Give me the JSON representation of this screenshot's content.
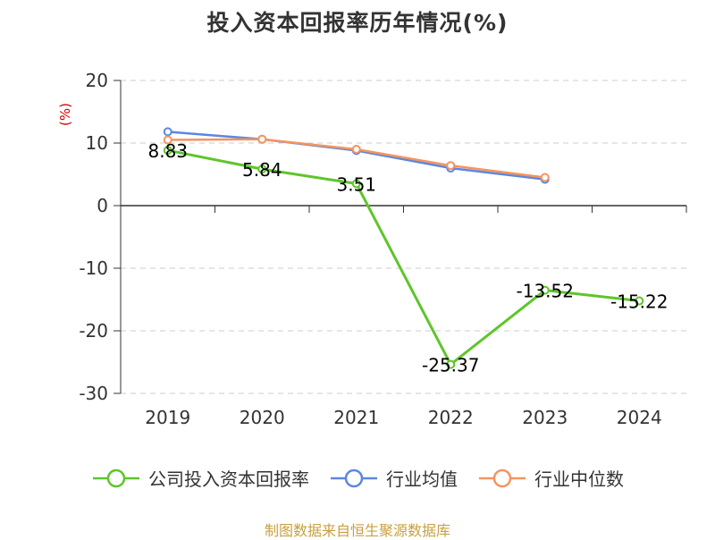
{
  "title": "投入资本回报率历年情况(%)",
  "unit_label": "(%)",
  "source_note": "制图数据来自恒生聚源数据库",
  "colors": {
    "company": "#5ec52b",
    "industry_avg": "#5b87e0",
    "industry_median": "#f5945f",
    "axis": "#333333",
    "grid": "#cccccc"
  },
  "legend": [
    {
      "label": "公司投入资本回报率",
      "color": "#5ec52b"
    },
    {
      "label": "行业均值",
      "color": "#5b87e0"
    },
    {
      "label": "行业中位数",
      "color": "#f5945f"
    }
  ],
  "chart_data": {
    "type": "line",
    "title": "投入资本回报率历年情况(%)",
    "ylabel": "(%)",
    "categories": [
      "2019",
      "2020",
      "2021",
      "2022",
      "2023",
      "2024"
    ],
    "ylim": [
      -30,
      20
    ],
    "yticks": [
      "20",
      "10",
      "0",
      "-10",
      "-20",
      "-30"
    ],
    "grid": true,
    "legend_position": "bottom",
    "series": [
      {
        "name": "公司投入资本回报率",
        "values": [
          8.83,
          5.84,
          3.51,
          -25.37,
          -13.52,
          -15.22
        ],
        "labels": [
          "8.83",
          "5.84",
          "3.51",
          "-25.37",
          "-13.52",
          "-15.22"
        ],
        "color": "#5ec52b"
      },
      {
        "name": "行业均值",
        "values": [
          11.8,
          10.6,
          8.8,
          6.0,
          4.2,
          null
        ],
        "color": "#5b87e0"
      },
      {
        "name": "行业中位数",
        "values": [
          10.5,
          10.6,
          9.0,
          6.4,
          4.5,
          null
        ],
        "color": "#f5945f"
      }
    ]
  }
}
